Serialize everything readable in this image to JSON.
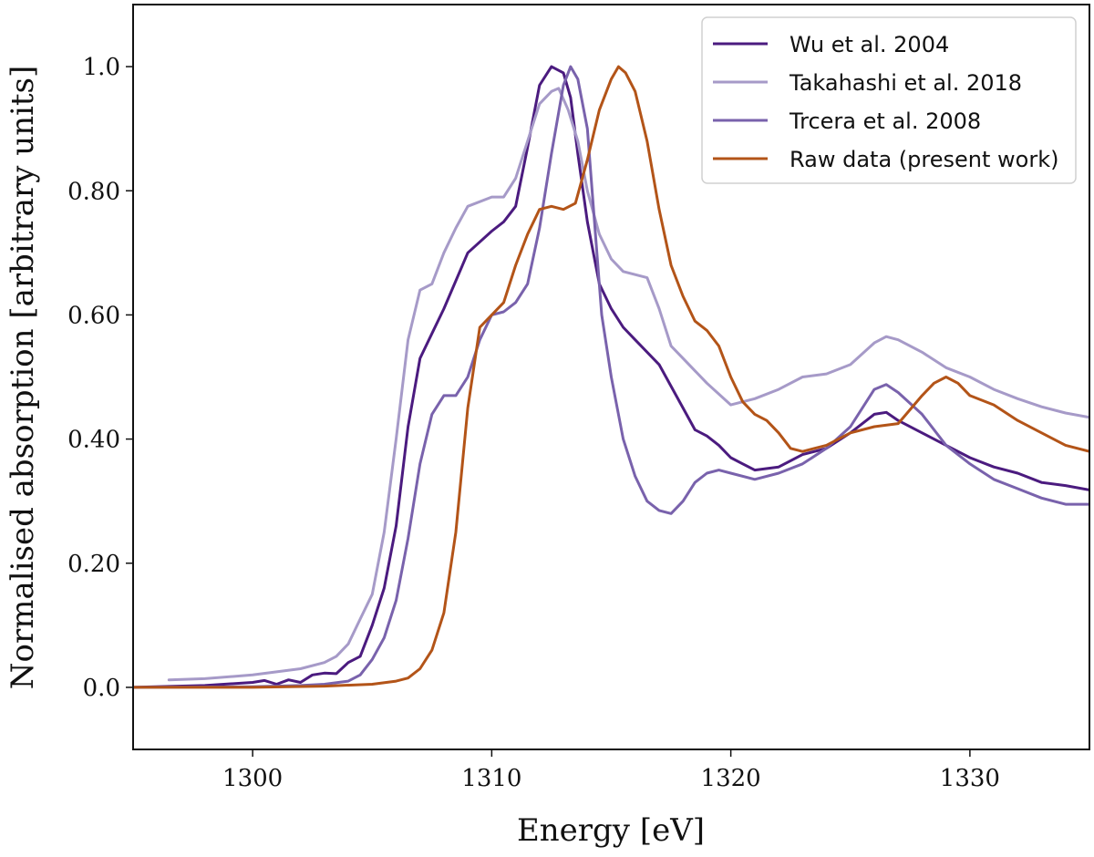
{
  "chart_data": {
    "type": "line",
    "xlabel": "Energy [eV]",
    "ylabel": "Normalised absorption [arbitrary units]",
    "xlim": [
      1295,
      1335
    ],
    "ylim": [
      -0.1,
      1.1
    ],
    "xticks": [
      {
        "value": 1300,
        "label": "1300"
      },
      {
        "value": 1310,
        "label": "1310"
      },
      {
        "value": 1320,
        "label": "1320"
      },
      {
        "value": 1330,
        "label": "1330"
      }
    ],
    "yticks": [
      {
        "value": 0.0,
        "label": "0.0"
      },
      {
        "value": 0.2,
        "label": "0.20"
      },
      {
        "value": 0.4,
        "label": "0.40"
      },
      {
        "value": 0.6,
        "label": "0.60"
      },
      {
        "value": 0.8,
        "label": "0.80"
      },
      {
        "value": 1.0,
        "label": "1.0"
      }
    ],
    "grid": false,
    "legend_position": "top-right",
    "series": [
      {
        "name": "Wu et al. 2004",
        "color": "#4b1b7f",
        "x": [
          1295,
          1298,
          1300,
          1300.5,
          1301,
          1301.5,
          1302,
          1302.5,
          1303,
          1303.5,
          1304,
          1304.5,
          1305,
          1305.5,
          1306,
          1306.5,
          1307,
          1307.5,
          1308,
          1309,
          1310,
          1310.5,
          1311,
          1311.5,
          1312,
          1312.5,
          1313,
          1313.3,
          1313.6,
          1314,
          1314.5,
          1315,
          1315.5,
          1316,
          1317,
          1318,
          1318.5,
          1319,
          1319.5,
          1320,
          1320.5,
          1321,
          1322,
          1323,
          1324,
          1325,
          1326,
          1326.5,
          1327,
          1328,
          1329,
          1330,
          1331,
          1332,
          1333,
          1334,
          1335
        ],
        "y": [
          0.0,
          0.003,
          0.008,
          0.011,
          0.005,
          0.012,
          0.008,
          0.02,
          0.023,
          0.022,
          0.04,
          0.05,
          0.1,
          0.16,
          0.26,
          0.42,
          0.53,
          0.57,
          0.61,
          0.7,
          0.735,
          0.75,
          0.775,
          0.87,
          0.97,
          1.0,
          0.99,
          0.95,
          0.86,
          0.75,
          0.65,
          0.61,
          0.58,
          0.56,
          0.52,
          0.45,
          0.415,
          0.405,
          0.39,
          0.37,
          0.36,
          0.35,
          0.355,
          0.375,
          0.385,
          0.41,
          0.44,
          0.443,
          0.43,
          0.41,
          0.39,
          0.37,
          0.355,
          0.345,
          0.33,
          0.325,
          0.318
        ]
      },
      {
        "name": "Takahashi et al. 2018",
        "color": "#a69ac8",
        "x": [
          1296.5,
          1298,
          1300,
          1301,
          1302,
          1303,
          1303.5,
          1304,
          1304.5,
          1305,
          1305.5,
          1306,
          1306.5,
          1307,
          1307.5,
          1308,
          1308.5,
          1309,
          1310,
          1310.5,
          1311,
          1311.5,
          1312,
          1312.5,
          1312.8,
          1313.2,
          1313.6,
          1314,
          1314.5,
          1315,
          1315.5,
          1316,
          1316.5,
          1317,
          1317.5,
          1318,
          1319,
          1320,
          1321,
          1322,
          1323,
          1324,
          1325,
          1326,
          1326.5,
          1327,
          1328,
          1329,
          1330,
          1331,
          1332,
          1333,
          1334,
          1335
        ],
        "y": [
          0.012,
          0.014,
          0.02,
          0.025,
          0.03,
          0.04,
          0.05,
          0.07,
          0.11,
          0.15,
          0.25,
          0.4,
          0.56,
          0.64,
          0.65,
          0.7,
          0.74,
          0.775,
          0.79,
          0.79,
          0.82,
          0.88,
          0.94,
          0.96,
          0.965,
          0.93,
          0.88,
          0.8,
          0.73,
          0.69,
          0.67,
          0.665,
          0.66,
          0.61,
          0.55,
          0.53,
          0.49,
          0.455,
          0.465,
          0.48,
          0.5,
          0.505,
          0.52,
          0.555,
          0.565,
          0.56,
          0.54,
          0.515,
          0.5,
          0.48,
          0.465,
          0.452,
          0.442,
          0.435
        ]
      },
      {
        "name": "Trcera et al. 2008",
        "color": "#7962ac",
        "x": [
          1295,
          1300,
          1302,
          1303,
          1304,
          1304.5,
          1305,
          1305.5,
          1306,
          1306.5,
          1307,
          1307.5,
          1308,
          1308.5,
          1309,
          1309.5,
          1310,
          1310.5,
          1311,
          1311.5,
          1312,
          1312.5,
          1313,
          1313.3,
          1313.6,
          1314,
          1314.3,
          1314.6,
          1315,
          1315.5,
          1316,
          1316.5,
          1317,
          1317.5,
          1318,
          1318.5,
          1319,
          1319.5,
          1320,
          1321,
          1322,
          1323,
          1324,
          1325,
          1326,
          1326.5,
          1327,
          1328,
          1329,
          1330,
          1331,
          1332,
          1333,
          1334,
          1335
        ],
        "y": [
          0.0,
          0.001,
          0.003,
          0.005,
          0.01,
          0.02,
          0.045,
          0.08,
          0.14,
          0.24,
          0.36,
          0.44,
          0.47,
          0.47,
          0.5,
          0.56,
          0.6,
          0.605,
          0.62,
          0.65,
          0.74,
          0.86,
          0.97,
          1.0,
          0.98,
          0.9,
          0.75,
          0.6,
          0.5,
          0.4,
          0.34,
          0.3,
          0.285,
          0.28,
          0.3,
          0.33,
          0.345,
          0.35,
          0.345,
          0.335,
          0.345,
          0.36,
          0.385,
          0.42,
          0.48,
          0.488,
          0.475,
          0.44,
          0.39,
          0.36,
          0.335,
          0.32,
          0.305,
          0.295,
          0.295
        ]
      },
      {
        "name": "Raw data (present work)",
        "color": "#b35418",
        "x": [
          1295,
          1300,
          1303,
          1305,
          1306,
          1306.5,
          1307,
          1307.5,
          1308,
          1308.5,
          1309,
          1309.5,
          1310,
          1310.5,
          1311,
          1311.5,
          1312,
          1312.5,
          1313,
          1313.5,
          1314,
          1314.5,
          1315,
          1315.3,
          1315.6,
          1316,
          1316.5,
          1317,
          1317.5,
          1318,
          1318.5,
          1319,
          1319.5,
          1320,
          1320.5,
          1321,
          1321.5,
          1322,
          1322.5,
          1323,
          1324,
          1325,
          1326,
          1327,
          1328,
          1328.5,
          1329,
          1329.5,
          1330,
          1331,
          1332,
          1333,
          1334,
          1335
        ],
        "y": [
          0.0,
          0.0,
          0.002,
          0.005,
          0.01,
          0.015,
          0.03,
          0.06,
          0.12,
          0.25,
          0.45,
          0.58,
          0.6,
          0.62,
          0.68,
          0.73,
          0.77,
          0.775,
          0.77,
          0.78,
          0.85,
          0.93,
          0.98,
          1.0,
          0.99,
          0.96,
          0.88,
          0.77,
          0.68,
          0.63,
          0.59,
          0.575,
          0.55,
          0.5,
          0.46,
          0.44,
          0.43,
          0.41,
          0.385,
          0.38,
          0.39,
          0.41,
          0.42,
          0.425,
          0.47,
          0.49,
          0.5,
          0.49,
          0.47,
          0.455,
          0.43,
          0.41,
          0.39,
          0.38
        ]
      }
    ]
  }
}
